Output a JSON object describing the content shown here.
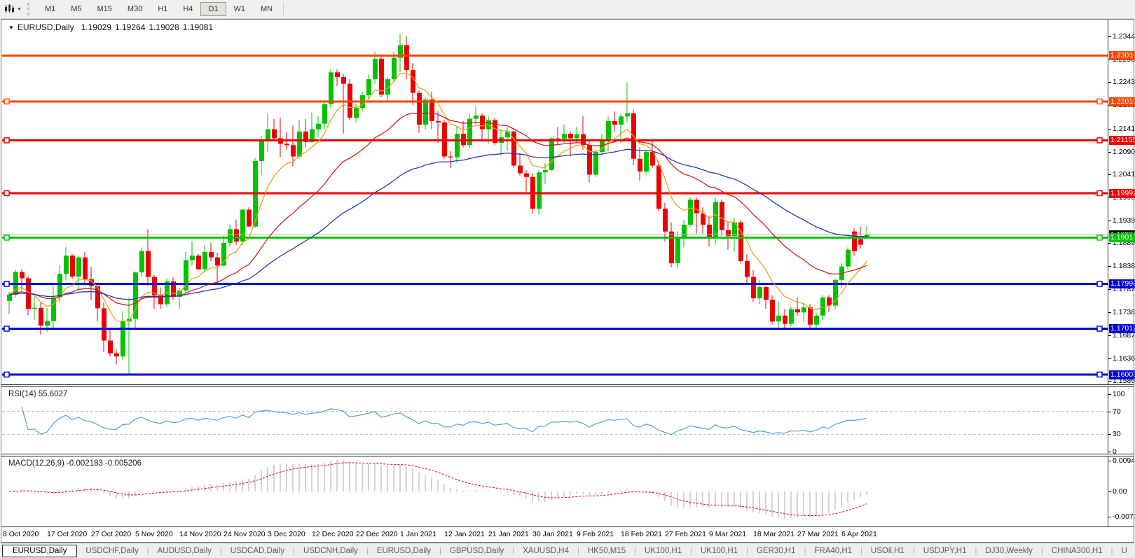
{
  "toolbar": {
    "chart_icon": "candlestick-chart",
    "dropdown_icon": "▼",
    "timeframes": [
      "M1",
      "M5",
      "M15",
      "M30",
      "H1",
      "H4",
      "D1",
      "W1",
      "MN"
    ],
    "active_timeframe": "D1"
  },
  "chart_title": {
    "dropdown_icon": "▼",
    "symbol": "EURUSD,Daily",
    "open": "1.19029",
    "high": "1.19264",
    "low": "1.19028",
    "close": "1.19081"
  },
  "chart_data": {
    "type": "candlestick",
    "symbol": "EURUSD",
    "timeframe": "Daily",
    "colors": {
      "up": "#00C400",
      "down": "#EE0000",
      "ma_fast": "#E8A020",
      "ma_medium": "#CC2020",
      "ma_slow": "#2439B0",
      "grid_dash": "#BBBBBB",
      "current_line": "#B8B8B8",
      "current_label_bg": "#000000"
    },
    "moving_averages": [
      {
        "name": "fast",
        "period": 8,
        "color": "#E8A020"
      },
      {
        "name": "medium",
        "period": 25,
        "color": "#CC2020"
      },
      {
        "name": "slow",
        "period": 55,
        "color": "#2439B0"
      }
    ],
    "hlines": [
      {
        "price": 1.23019,
        "label": "1.23019",
        "color": "#FF4500",
        "selected": false
      },
      {
        "price": 1.2201,
        "label": "1.22010",
        "color": "#FF4500",
        "selected": true
      },
      {
        "price": 1.21155,
        "label": "1.21155",
        "color": "#EE0000",
        "selected": true
      },
      {
        "price": 1.19992,
        "label": "1.19992",
        "color": "#EE0000",
        "selected": true
      },
      {
        "price": 1.19015,
        "label": "1.19015",
        "color": "#00C400",
        "selected": true
      },
      {
        "price": 1.17998,
        "label": "1.17998",
        "color": "#0000D8",
        "selected": true
      },
      {
        "price": 1.17012,
        "label": "1.17012",
        "color": "#0000D8",
        "selected": true
      },
      {
        "price": 1.16003,
        "label": "1.16003",
        "color": "#0000D8",
        "selected": true
      }
    ],
    "current_price": {
      "value": 1.19081,
      "label": "1.19081"
    },
    "price_axis_ticks": [
      "1.23440",
      "1.22930",
      "1.22435",
      "1.21925",
      "1.21415",
      "1.20905",
      "1.20410",
      "1.19900",
      "1.19390",
      "1.18895",
      "1.18385",
      "1.17875",
      "1.17380",
      "1.16870",
      "1.16360",
      "1.15865"
    ],
    "x_labels": [
      "8 Oct 2020",
      "17 Oct 2020",
      "27 Oct 2020",
      "5 Nov 2020",
      "14 Nov 2020",
      "24 Nov 2020",
      "3 Dec 2020",
      "12 Dec 2020",
      "22 Dec 2020",
      "1 Jan 2021",
      "12 Jan 2021",
      "21 Jan 2021",
      "30 Jan 2021",
      "9 Feb 2021",
      "18 Feb 2021",
      "27 Feb 2021",
      "9 Mar 2021",
      "18 Mar 2021",
      "27 Mar 2021",
      "6 Apr 2021"
    ],
    "candles": [
      [
        1.1762,
        1.1782,
        1.1733,
        1.1776
      ],
      [
        1.1776,
        1.1831,
        1.177,
        1.1826
      ],
      [
        1.1826,
        1.1832,
        1.1786,
        1.1812
      ],
      [
        1.1812,
        1.1817,
        1.1731,
        1.1745
      ],
      [
        1.1745,
        1.1772,
        1.172,
        1.1747
      ],
      [
        1.1747,
        1.1758,
        1.1688,
        1.1708
      ],
      [
        1.1708,
        1.1747,
        1.1694,
        1.1718
      ],
      [
        1.1718,
        1.1794,
        1.1703,
        1.177
      ],
      [
        1.177,
        1.184,
        1.176,
        1.1822
      ],
      [
        1.1822,
        1.1881,
        1.1807,
        1.1862
      ],
      [
        1.1862,
        1.1866,
        1.1811,
        1.1816
      ],
      [
        1.1816,
        1.1862,
        1.1786,
        1.1858
      ],
      [
        1.1858,
        1.187,
        1.18,
        1.181
      ],
      [
        1.181,
        1.1837,
        1.1764,
        1.1795
      ],
      [
        1.1795,
        1.18,
        1.1717,
        1.1746
      ],
      [
        1.1746,
        1.1759,
        1.165,
        1.1675
      ],
      [
        1.1675,
        1.1704,
        1.164,
        1.1647
      ],
      [
        1.1647,
        1.1656,
        1.1622,
        1.164
      ],
      [
        1.164,
        1.174,
        1.1633,
        1.1717
      ],
      [
        1.1717,
        1.177,
        1.16,
        1.1723
      ],
      [
        1.1723,
        1.1827,
        1.1702,
        1.1825
      ],
      [
        1.1825,
        1.188,
        1.1815,
        1.1872
      ],
      [
        1.1872,
        1.192,
        1.1795,
        1.1815
      ],
      [
        1.1815,
        1.182,
        1.1745,
        1.1775
      ],
      [
        1.1775,
        1.1792,
        1.1745,
        1.1755
      ],
      [
        1.1755,
        1.1812,
        1.175,
        1.1805
      ],
      [
        1.1805,
        1.1815,
        1.1765,
        1.1771
      ],
      [
        1.1771,
        1.179,
        1.1744,
        1.1785
      ],
      [
        1.1785,
        1.187,
        1.178,
        1.1852
      ],
      [
        1.1852,
        1.1894,
        1.184,
        1.1862
      ],
      [
        1.1862,
        1.1866,
        1.183,
        1.1832
      ],
      [
        1.1832,
        1.1885,
        1.1825,
        1.187
      ],
      [
        1.187,
        1.189,
        1.185,
        1.1858
      ],
      [
        1.1858,
        1.1868,
        1.18,
        1.184
      ],
      [
        1.184,
        1.1905,
        1.1838,
        1.189
      ],
      [
        1.189,
        1.193,
        1.1881,
        1.192
      ],
      [
        1.192,
        1.1941,
        1.1885,
        1.1893
      ],
      [
        1.1893,
        1.1965,
        1.1885,
        1.1963
      ],
      [
        1.1963,
        1.1968,
        1.1925,
        1.1926
      ],
      [
        1.1926,
        1.2077,
        1.1923,
        1.207
      ],
      [
        1.207,
        1.2125,
        1.204,
        1.2115
      ],
      [
        1.2115,
        1.2175,
        1.209,
        1.214
      ],
      [
        1.214,
        1.2163,
        1.2115,
        1.212
      ],
      [
        1.212,
        1.2166,
        1.2079,
        1.2108
      ],
      [
        1.2108,
        1.2134,
        1.2095,
        1.2105
      ],
      [
        1.2105,
        1.2148,
        1.2058,
        1.208
      ],
      [
        1.208,
        1.216,
        1.2075,
        1.2135
      ],
      [
        1.2135,
        1.2163,
        1.21,
        1.2112
      ],
      [
        1.2112,
        1.2177,
        1.211,
        1.214
      ],
      [
        1.214,
        1.217,
        1.2123,
        1.2152
      ],
      [
        1.2152,
        1.22,
        1.214,
        1.2195
      ],
      [
        1.2195,
        1.2273,
        1.2185,
        1.2265
      ],
      [
        1.2265,
        1.2272,
        1.2235,
        1.2255
      ],
      [
        1.2255,
        1.2262,
        1.213,
        1.224
      ],
      [
        1.224,
        1.225,
        1.216,
        1.2165
      ],
      [
        1.2165,
        1.2195,
        1.2155,
        1.2187
      ],
      [
        1.2187,
        1.2222,
        1.218,
        1.2215
      ],
      [
        1.2215,
        1.226,
        1.2205,
        1.225
      ],
      [
        1.225,
        1.231,
        1.224,
        1.2295
      ],
      [
        1.2295,
        1.2305,
        1.221,
        1.2216
      ],
      [
        1.2216,
        1.2255,
        1.22,
        1.225
      ],
      [
        1.225,
        1.231,
        1.2245,
        1.2297
      ],
      [
        1.2297,
        1.235,
        1.2266,
        1.2325
      ],
      [
        1.2325,
        1.2345,
        1.225,
        1.227
      ],
      [
        1.227,
        1.2285,
        1.2193,
        1.222
      ],
      [
        1.222,
        1.2225,
        1.2132,
        1.215
      ],
      [
        1.215,
        1.221,
        1.214,
        1.2205
      ],
      [
        1.2205,
        1.2223,
        1.214,
        1.2158
      ],
      [
        1.2158,
        1.218,
        1.211,
        1.2155
      ],
      [
        1.2155,
        1.216,
        1.2075,
        1.208
      ],
      [
        1.208,
        1.2092,
        1.2054,
        1.2078
      ],
      [
        1.2078,
        1.2145,
        1.2066,
        1.213
      ],
      [
        1.213,
        1.2158,
        1.21,
        1.2105
      ],
      [
        1.2105,
        1.2173,
        1.21,
        1.2163
      ],
      [
        1.2163,
        1.219,
        1.2151,
        1.217
      ],
      [
        1.217,
        1.2175,
        1.2116,
        1.214
      ],
      [
        1.214,
        1.217,
        1.2108,
        1.216
      ],
      [
        1.216,
        1.2165,
        1.2105,
        1.211
      ],
      [
        1.211,
        1.214,
        1.2082,
        1.2122
      ],
      [
        1.2122,
        1.2145,
        1.2092,
        1.2135
      ],
      [
        1.2135,
        1.2137,
        1.2055,
        1.206
      ],
      [
        1.206,
        1.2087,
        1.2038,
        1.2043
      ],
      [
        1.2043,
        1.205,
        1.2003,
        1.2035
      ],
      [
        1.2035,
        1.2043,
        1.1955,
        1.1965
      ],
      [
        1.1965,
        1.205,
        1.1952,
        1.2045
      ],
      [
        1.2045,
        1.2065,
        1.202,
        1.205
      ],
      [
        1.205,
        1.2122,
        1.2048,
        1.212
      ],
      [
        1.212,
        1.2145,
        1.2105,
        1.2119
      ],
      [
        1.2119,
        1.215,
        1.211,
        1.213
      ],
      [
        1.213,
        1.2135,
        1.208,
        1.212
      ],
      [
        1.212,
        1.2145,
        1.211,
        1.2129
      ],
      [
        1.2129,
        1.2169,
        1.2095,
        1.2105
      ],
      [
        1.2105,
        1.2113,
        1.2023,
        1.204
      ],
      [
        1.204,
        1.2095,
        1.2035,
        1.209
      ],
      [
        1.209,
        1.213,
        1.2082,
        1.2118
      ],
      [
        1.2118,
        1.2168,
        1.2092,
        1.2158
      ],
      [
        1.2158,
        1.218,
        1.2135,
        1.215
      ],
      [
        1.215,
        1.2175,
        1.211,
        1.2168
      ],
      [
        1.2168,
        1.2243,
        1.2155,
        1.2175
      ],
      [
        1.2175,
        1.2183,
        1.2061,
        1.2075
      ],
      [
        1.2075,
        1.21,
        1.2027,
        1.2047
      ],
      [
        1.2047,
        1.2095,
        1.204,
        1.209
      ],
      [
        1.209,
        1.2113,
        1.2055,
        1.206
      ],
      [
        1.206,
        1.207,
        1.196,
        1.1965
      ],
      [
        1.1965,
        1.1978,
        1.1893,
        1.1915
      ],
      [
        1.1915,
        1.1935,
        1.1836,
        1.1845
      ],
      [
        1.1845,
        1.1915,
        1.1835,
        1.19
      ],
      [
        1.19,
        1.194,
        1.188,
        1.193
      ],
      [
        1.193,
        1.199,
        1.1925,
        1.1985
      ],
      [
        1.1985,
        1.199,
        1.191,
        1.1955
      ],
      [
        1.1955,
        1.1968,
        1.1911,
        1.193
      ],
      [
        1.193,
        1.195,
        1.1882,
        1.19
      ],
      [
        1.19,
        1.199,
        1.1886,
        1.198
      ],
      [
        1.198,
        1.1985,
        1.1906,
        1.1918
      ],
      [
        1.1918,
        1.1935,
        1.1875,
        1.1905
      ],
      [
        1.1905,
        1.1945,
        1.187,
        1.1935
      ],
      [
        1.1935,
        1.194,
        1.1845,
        1.185
      ],
      [
        1.185,
        1.1865,
        1.18,
        1.1815
      ],
      [
        1.1815,
        1.183,
        1.176,
        1.1768
      ],
      [
        1.1768,
        1.1808,
        1.1755,
        1.1793
      ],
      [
        1.1793,
        1.1795,
        1.1745,
        1.1765
      ],
      [
        1.1765,
        1.1775,
        1.171,
        1.1717
      ],
      [
        1.1717,
        1.1762,
        1.1704,
        1.173
      ],
      [
        1.173,
        1.1745,
        1.17,
        1.1712
      ],
      [
        1.1712,
        1.175,
        1.1706,
        1.1744
      ],
      [
        1.1744,
        1.177,
        1.173,
        1.1737
      ],
      [
        1.1737,
        1.1758,
        1.1715,
        1.1748
      ],
      [
        1.1748,
        1.1755,
        1.1702,
        1.171
      ],
      [
        1.171,
        1.1736,
        1.17,
        1.173
      ],
      [
        1.173,
        1.1775,
        1.172,
        1.177
      ],
      [
        1.177,
        1.1775,
        1.1738,
        1.1752
      ],
      [
        1.1752,
        1.1812,
        1.1745,
        1.1808
      ],
      [
        1.1808,
        1.1845,
        1.179,
        1.1838
      ],
      [
        1.1838,
        1.188,
        1.1832,
        1.1875
      ],
      [
        1.1915,
        1.1922,
        1.1862,
        1.1872
      ],
      [
        1.1898,
        1.1926,
        1.1878,
        1.1886
      ],
      [
        1.19029,
        1.19264,
        1.19028,
        1.19081
      ]
    ],
    "rsi": {
      "label": "RSI(14) 55.6027",
      "period": 14,
      "value": 55.6027,
      "levels": [
        70,
        30
      ],
      "axis_ticks": [
        "100",
        "70",
        "30",
        "0"
      ],
      "color": "#559FD8"
    },
    "macd": {
      "label": "MACD(12,26,9) -0.002183 -0.005206",
      "fast": 12,
      "slow": 26,
      "signal_period": 9,
      "main_value": -0.002183,
      "signal_value": -0.005206,
      "axis_ticks": [
        {
          "label": "0.009478",
          "value": 0.009478
        },
        {
          "label": "0.00",
          "value": 0
        },
        {
          "label": "-0.00777",
          "value": -0.00777
        }
      ],
      "bar_color": "#A8A8A8",
      "signal_color": "#E00000"
    }
  },
  "tabs": {
    "items": [
      "EURUSD,Daily",
      "USDCHF,Daily",
      "AUDUSD,Daily",
      "USDCAD,Daily",
      "USDCNH,Daily",
      "EURUSD,Daily",
      "GBPUSD,Daily",
      "XAUUSD,H4",
      "HK50,M15",
      "UK100,H1",
      "UK100,H1",
      "GER30,H1",
      "FRA40,H1",
      "USOil,H1",
      "USDJPY,H1",
      "DJ30,Weekly",
      "CHINA300,H1",
      "U"
    ],
    "active_index": 0,
    "scroll_left": "◄",
    "scroll_right": "►"
  }
}
